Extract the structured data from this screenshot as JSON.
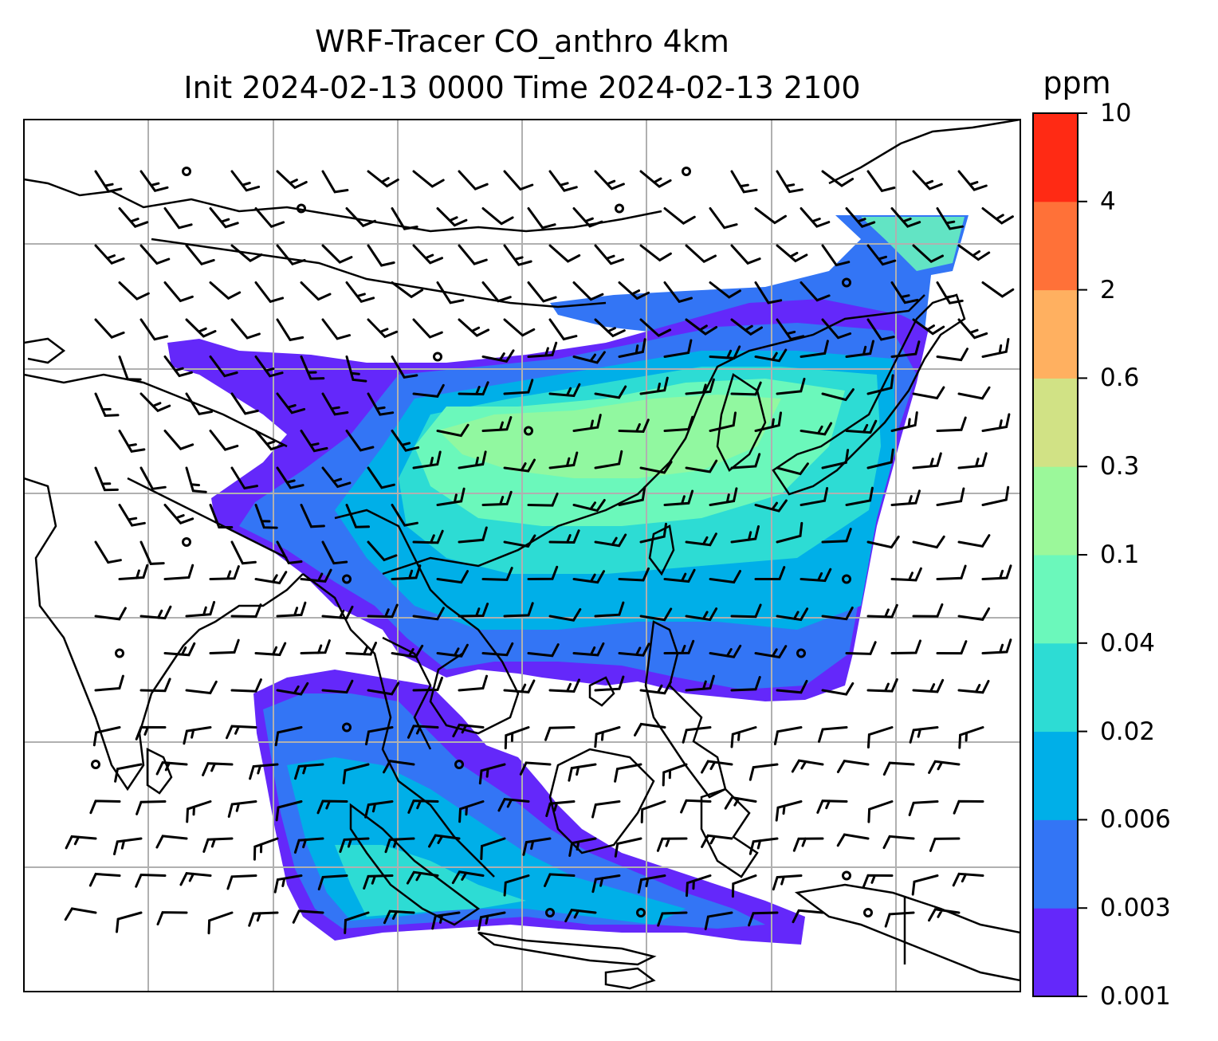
{
  "title": {
    "line1": "WRF-Tracer CO_anthro 4km",
    "line2": "Init 2024-02-13 0000 Time 2024-02-13 2100"
  },
  "colorbar": {
    "unit": "ppm",
    "levels": [
      "0.001",
      "0.003",
      "0.006",
      "0.02",
      "0.04",
      "0.1",
      "0.3",
      "0.6",
      "2",
      "4",
      "10"
    ],
    "colors": [
      "#6428fa",
      "#3375f5",
      "#00afe8",
      "#2ddcd4",
      "#6bf8bb",
      "#9bf89a",
      "#d1e285",
      "#ffb060",
      "#ff7138",
      "#ff2a14"
    ]
  },
  "map": {
    "gridlines": true,
    "gridline_color": "#b0b0b0",
    "coastline_color": "#000000",
    "barb_color": "#000000"
  }
}
